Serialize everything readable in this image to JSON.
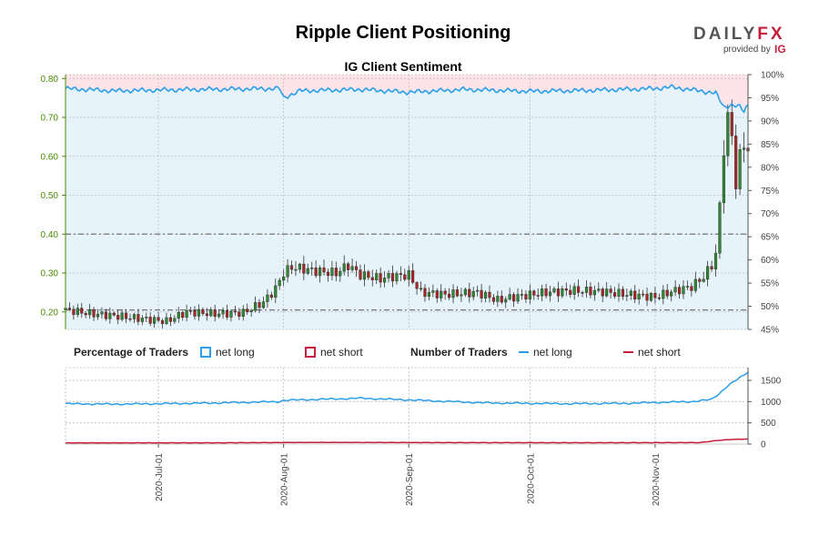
{
  "header": {
    "title": "Ripple Client Positioning",
    "logo_text_1": "DAILY",
    "logo_text_2": "FX",
    "logo_sub": "provided by",
    "logo_ig": "IG"
  },
  "colors": {
    "net_long": "#2a9ee8",
    "net_short": "#c41e3a",
    "up_candle": "#2e8b2e",
    "down_candle": "#b22222",
    "left_axis": "#4a8a00",
    "long_fill": "#e6f3fb",
    "short_fill": "#fde4e8"
  },
  "chart_data": [
    {
      "type": "candlestick",
      "title": "IG Client Sentiment",
      "left_axis": {
        "ticks": [
          "0.20",
          "0.30",
          "0.40",
          "0.50",
          "0.60",
          "0.70",
          "0.80"
        ],
        "range": [
          0.155,
          0.81
        ]
      },
      "right_axis": {
        "ticks": [
          "45%",
          "50%",
          "55%",
          "60%",
          "65%",
          "70%",
          "75%",
          "80%",
          "85%",
          "90%",
          "95%",
          "100%"
        ],
        "range": [
          45,
          100
        ]
      },
      "dates_range": [
        "2020-06-08",
        "2020-11-24"
      ],
      "reference_levels": [
        0.205,
        0.4
      ],
      "price_anchors": [
        [
          "2020-06-08",
          0.205
        ],
        [
          "2020-06-15",
          0.195
        ],
        [
          "2020-06-22",
          0.188
        ],
        [
          "2020-06-29",
          0.18
        ],
        [
          "2020-07-03",
          0.176
        ],
        [
          "2020-07-08",
          0.2
        ],
        [
          "2020-07-15",
          0.195
        ],
        [
          "2020-07-22",
          0.198
        ],
        [
          "2020-07-27",
          0.225
        ],
        [
          "2020-07-30",
          0.26
        ],
        [
          "2020-08-01",
          0.3
        ],
        [
          "2020-08-03",
          0.315
        ],
        [
          "2020-08-09",
          0.305
        ],
        [
          "2020-08-14",
          0.3
        ],
        [
          "2020-08-17",
          0.32
        ],
        [
          "2020-08-20",
          0.295
        ],
        [
          "2020-08-25",
          0.285
        ],
        [
          "2020-08-27",
          0.29
        ],
        [
          "2020-09-01",
          0.295
        ],
        [
          "2020-09-04",
          0.25
        ],
        [
          "2020-09-10",
          0.245
        ],
        [
          "2020-09-18",
          0.25
        ],
        [
          "2020-09-23",
          0.23
        ],
        [
          "2020-09-28",
          0.24
        ],
        [
          "2020-10-05",
          0.25
        ],
        [
          "2020-10-12",
          0.255
        ],
        [
          "2020-10-19",
          0.252
        ],
        [
          "2020-10-25",
          0.245
        ],
        [
          "2020-11-01",
          0.238
        ],
        [
          "2020-11-05",
          0.252
        ],
        [
          "2020-11-10",
          0.265
        ],
        [
          "2020-11-13",
          0.29
        ],
        [
          "2020-11-15",
          0.32
        ],
        [
          "2020-11-16",
          0.35
        ],
        [
          "2020-11-17",
          0.47
        ],
        [
          "2020-11-18",
          0.62
        ],
        [
          "2020-11-19",
          0.7
        ],
        [
          "2020-11-20",
          0.65
        ],
        [
          "2020-11-21",
          0.53
        ],
        [
          "2020-11-22",
          0.6
        ],
        [
          "2020-11-23",
          0.63
        ],
        [
          "2020-11-24",
          0.62
        ]
      ],
      "net_long_pct_anchors": [
        [
          "2020-06-08",
          97.0
        ],
        [
          "2020-06-20",
          96.5
        ],
        [
          "2020-07-10",
          96.8
        ],
        [
          "2020-07-31",
          97.0
        ],
        [
          "2020-08-01",
          95.0
        ],
        [
          "2020-08-05",
          96.5
        ],
        [
          "2020-08-20",
          96.8
        ],
        [
          "2020-09-01",
          96.2
        ],
        [
          "2020-09-15",
          96.8
        ],
        [
          "2020-10-01",
          96.4
        ],
        [
          "2020-10-15",
          96.6
        ],
        [
          "2020-11-01",
          97.0
        ],
        [
          "2020-11-05",
          97.3
        ],
        [
          "2020-11-12",
          96.5
        ],
        [
          "2020-11-16",
          96.0
        ],
        [
          "2020-11-18",
          93.0
        ],
        [
          "2020-11-20",
          93.5
        ],
        [
          "2020-11-22",
          93.0
        ],
        [
          "2020-11-23",
          92.0
        ],
        [
          "2020-11-24",
          93.5
        ]
      ]
    },
    {
      "type": "line",
      "title": "Number of Traders",
      "right_axis": {
        "ticks": [
          "0",
          "500",
          "1000",
          "1500"
        ],
        "range": [
          0,
          1800
        ]
      },
      "series": [
        {
          "name": "net long",
          "anchors": [
            [
              "2020-06-08",
              950
            ],
            [
              "2020-06-20",
              940
            ],
            [
              "2020-07-10",
              960
            ],
            [
              "2020-07-31",
              1000
            ],
            [
              "2020-08-01",
              1030
            ],
            [
              "2020-08-20",
              1080
            ],
            [
              "2020-09-01",
              1040
            ],
            [
              "2020-09-20",
              970
            ],
            [
              "2020-10-10",
              950
            ],
            [
              "2020-10-25",
              960
            ],
            [
              "2020-11-01",
              980
            ],
            [
              "2020-11-10",
              1000
            ],
            [
              "2020-11-15",
              1050
            ],
            [
              "2020-11-17",
              1200
            ],
            [
              "2020-11-19",
              1380
            ],
            [
              "2020-11-21",
              1500
            ],
            [
              "2020-11-23",
              1620
            ],
            [
              "2020-11-24",
              1700
            ]
          ]
        },
        {
          "name": "net short",
          "anchors": [
            [
              "2020-06-08",
              28
            ],
            [
              "2020-07-15",
              30
            ],
            [
              "2020-08-10",
              40
            ],
            [
              "2020-09-10",
              35
            ],
            [
              "2020-10-15",
              32
            ],
            [
              "2020-11-12",
              35
            ],
            [
              "2020-11-17",
              90
            ],
            [
              "2020-11-20",
              110
            ],
            [
              "2020-11-24",
              120
            ]
          ]
        }
      ]
    }
  ],
  "x_axis": {
    "ticks": [
      {
        "label": "2020-Jul-01",
        "date": "2020-07-01"
      },
      {
        "label": "2020-Aug-01",
        "date": "2020-08-01"
      },
      {
        "label": "2020-Sep-01",
        "date": "2020-09-01"
      },
      {
        "label": "2020-Oct-01",
        "date": "2020-10-01"
      },
      {
        "label": "2020-Nov-01",
        "date": "2020-11-01"
      }
    ]
  },
  "legend": {
    "percentage_header": "Percentage of Traders",
    "pct_long": "net long",
    "pct_short": "net short",
    "number_header": "Number of Traders",
    "num_long": "net long",
    "num_short": "net short"
  }
}
